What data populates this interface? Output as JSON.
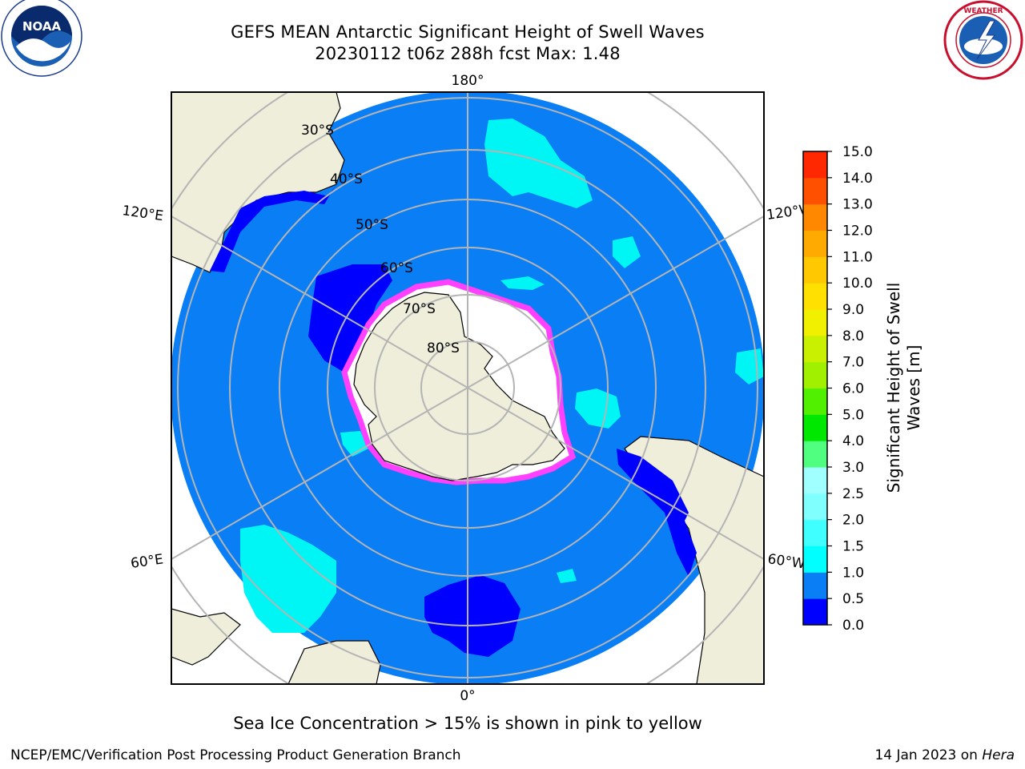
{
  "header": {
    "title_line1": "GEFS MEAN Antarctic Significant Height of Swell Waves",
    "title_line2": "20230112 t06z 288h fcst   Max: 1.48"
  },
  "logos": {
    "left": "noaa-logo",
    "right": "national-weather-service-logo"
  },
  "map": {
    "projection": "south-polar-stereographic",
    "lon_labels": [
      "180°",
      "120°E",
      "120°W",
      "60°E",
      "60°W",
      "0°"
    ],
    "lat_labels": [
      "30°S",
      "40°S",
      "50°S",
      "60°S",
      "70°S",
      "80°S"
    ],
    "colors": {
      "ocean": "#0a7ef5",
      "land": "#efeedb",
      "low_swell": "#0000ff",
      "moderate_swell": "#00f5f5",
      "ice_edge": "#ff40ff",
      "ice_interior": "#ffffff",
      "graticule": "#b4b4b4"
    }
  },
  "colorbar": {
    "title_line1": "Significant Height of Swell",
    "title_line2": "Waves [m]",
    "ticks": [
      "0.0",
      "0.5",
      "1.0",
      "1.5",
      "2.0",
      "2.5",
      "3.0",
      "4.0",
      "5.0",
      "6.0",
      "7.0",
      "8.0",
      "9.0",
      "10.0",
      "11.0",
      "12.0",
      "13.0",
      "14.0",
      "15.0"
    ],
    "colors": [
      "#0000ff",
      "#0a7ef5",
      "#00ffff",
      "#40ffff",
      "#80ffff",
      "#a0ffff",
      "#50ff80",
      "#00e800",
      "#50f000",
      "#a0f000",
      "#c8f000",
      "#f0f000",
      "#ffe000",
      "#ffc800",
      "#ffaa00",
      "#ff8800",
      "#ff5000",
      "#ff2800"
    ]
  },
  "caption": "Sea Ice Concentration > 15% is shown in pink to yellow",
  "footer": {
    "left": "NCEP/EMC/Verification Post Processing Product Generation Branch",
    "right_date": "14 Jan 2023 on ",
    "right_host": "Hera"
  }
}
